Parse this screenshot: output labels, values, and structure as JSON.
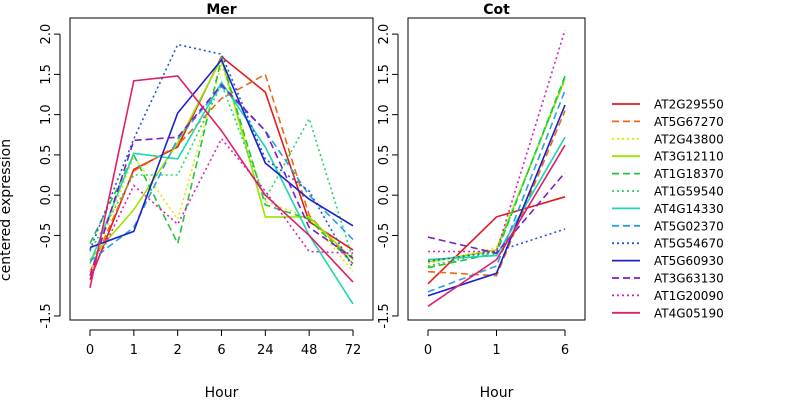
{
  "chart_data": [
    {
      "type": "line",
      "title": "Mer",
      "xlabel": "Hour",
      "ylabel": "centered expression",
      "categories": [
        "0",
        "1",
        "2",
        "6",
        "24",
        "48",
        "72"
      ],
      "ylim": [
        -1.55,
        2.2
      ],
      "yticks": [
        -1.5,
        -0.5,
        0.0,
        0.5,
        1.0,
        1.5,
        2.0
      ],
      "ytick_labels": [
        "-1.5",
        "-0.5",
        "0.0",
        "0.5",
        "1.0",
        "1.5",
        "2.0"
      ],
      "series": [
        {
          "name": "AT2G29550",
          "color": "#e41a1c",
          "dash": "solid",
          "values": [
            -1.05,
            0.32,
            0.6,
            1.72,
            1.28,
            -0.33,
            -0.68
          ]
        },
        {
          "name": "AT5G67270",
          "color": "#e66c12",
          "dash": "dashed",
          "values": [
            -0.95,
            0.3,
            0.62,
            1.2,
            1.5,
            -0.25,
            -0.85
          ]
        },
        {
          "name": "AT2G43800",
          "color": "#e6e600",
          "dash": "dotted",
          "values": [
            -0.95,
            0.48,
            -0.3,
            1.62,
            -0.08,
            -0.28,
            -0.95
          ]
        },
        {
          "name": "AT3G12110",
          "color": "#99e600",
          "dash": "solid",
          "values": [
            -0.8,
            -0.18,
            0.65,
            1.7,
            -0.27,
            -0.27,
            -0.8
          ]
        },
        {
          "name": "AT1G18370",
          "color": "#22c43a",
          "dash": "dashed",
          "values": [
            -0.6,
            0.5,
            -0.6,
            1.7,
            -0.12,
            -0.3,
            -0.85
          ]
        },
        {
          "name": "AT1G59540",
          "color": "#22d860",
          "dash": "dotted",
          "values": [
            -0.7,
            0.25,
            0.25,
            1.38,
            -0.05,
            0.95,
            -0.8
          ]
        },
        {
          "name": "AT4G14330",
          "color": "#1fd6b0",
          "dash": "solid",
          "values": [
            -0.85,
            0.52,
            0.45,
            1.4,
            0.6,
            -0.5,
            -1.35
          ]
        },
        {
          "name": "AT5G02370",
          "color": "#2aa0e0",
          "dash": "dashed",
          "values": [
            -0.82,
            -0.4,
            0.7,
            1.35,
            0.8,
            0.0,
            -0.55
          ]
        },
        {
          "name": "AT5G54670",
          "color": "#1a5ad8",
          "dash": "dotted",
          "values": [
            -0.68,
            0.7,
            1.87,
            1.75,
            0.45,
            0.05,
            -0.9
          ]
        },
        {
          "name": "AT5G60930",
          "color": "#1f1fc8",
          "dash": "solid",
          "values": [
            -0.65,
            -0.45,
            1.02,
            1.68,
            0.4,
            -0.05,
            -0.38
          ]
        },
        {
          "name": "AT3G63130",
          "color": "#7a1ec8",
          "dash": "dashed",
          "values": [
            -1.0,
            0.68,
            0.72,
            1.37,
            0.8,
            -0.4,
            -0.78
          ]
        },
        {
          "name": "AT1G20090",
          "color": "#d81ec0",
          "dash": "dotted",
          "values": [
            -1.0,
            0.12,
            -0.36,
            0.7,
            0.05,
            -0.7,
            -0.72
          ]
        },
        {
          "name": "AT4G05190",
          "color": "#e01e6a",
          "dash": "solid",
          "values": [
            -1.15,
            1.42,
            1.48,
            0.8,
            0.0,
            -0.5,
            -1.08
          ]
        }
      ]
    },
    {
      "type": "line",
      "title": "Cot",
      "xlabel": "Hour",
      "ylabel": "",
      "categories": [
        "0",
        "1",
        "6"
      ],
      "ylim": [
        -1.55,
        2.2
      ],
      "yticks": [
        -1.5,
        -0.5,
        0.0,
        0.5,
        1.0,
        1.5,
        2.0
      ],
      "ytick_labels": [
        "-1.5",
        "-0.5",
        "0.0",
        "0.5",
        "1.0",
        "1.5",
        "2.0"
      ],
      "series": [
        {
          "name": "AT2G29550",
          "color": "#e41a1c",
          "dash": "solid",
          "values": [
            -1.1,
            -0.27,
            -0.02
          ]
        },
        {
          "name": "AT5G67270",
          "color": "#e66c12",
          "dash": "dashed",
          "values": [
            -0.95,
            -1.0,
            1.05
          ]
        },
        {
          "name": "AT2G43800",
          "color": "#e6e600",
          "dash": "dotted",
          "values": [
            -0.85,
            -0.65,
            1.42
          ]
        },
        {
          "name": "AT3G12110",
          "color": "#99e600",
          "dash": "solid",
          "values": [
            -0.83,
            -0.68,
            1.45
          ]
        },
        {
          "name": "AT1G18370",
          "color": "#22c43a",
          "dash": "dashed",
          "values": [
            -0.9,
            -0.72,
            1.48
          ]
        },
        {
          "name": "AT1G59540",
          "color": "#22d860",
          "dash": "dotted",
          "values": [
            -0.88,
            -0.7,
            1.45
          ]
        },
        {
          "name": "AT4G14330",
          "color": "#1fd6b0",
          "dash": "solid",
          "values": [
            -0.8,
            -0.75,
            0.72
          ]
        },
        {
          "name": "AT5G02370",
          "color": "#2aa0e0",
          "dash": "dashed",
          "values": [
            -1.2,
            -0.88,
            1.3
          ]
        },
        {
          "name": "AT5G54670",
          "color": "#1a5ad8",
          "dash": "dotted",
          "values": [
            -0.82,
            -0.7,
            -0.42
          ]
        },
        {
          "name": "AT5G60930",
          "color": "#1f1fc8",
          "dash": "solid",
          "values": [
            -1.25,
            -0.97,
            1.12
          ]
        },
        {
          "name": "AT3G63130",
          "color": "#7a1ec8",
          "dash": "dashed",
          "values": [
            -0.52,
            -0.72,
            0.28
          ]
        },
        {
          "name": "AT1G20090",
          "color": "#d81ec0",
          "dash": "dotted",
          "values": [
            -0.7,
            -0.7,
            2.05
          ]
        },
        {
          "name": "AT4G05190",
          "color": "#e01e6a",
          "dash": "solid",
          "values": [
            -1.38,
            -0.8,
            0.62
          ]
        }
      ]
    }
  ],
  "legend": {
    "placement": "right",
    "entries": [
      {
        "name": "AT2G29550",
        "color": "#e41a1c",
        "dash": "solid"
      },
      {
        "name": "AT5G67270",
        "color": "#e66c12",
        "dash": "dashed"
      },
      {
        "name": "AT2G43800",
        "color": "#e6e600",
        "dash": "dotted"
      },
      {
        "name": "AT3G12110",
        "color": "#99e600",
        "dash": "solid"
      },
      {
        "name": "AT1G18370",
        "color": "#22c43a",
        "dash": "dashed"
      },
      {
        "name": "AT1G59540",
        "color": "#22d860",
        "dash": "dotted"
      },
      {
        "name": "AT4G14330",
        "color": "#1fd6b0",
        "dash": "solid"
      },
      {
        "name": "AT5G02370",
        "color": "#2aa0e0",
        "dash": "dashed"
      },
      {
        "name": "AT5G54670",
        "color": "#1a5ad8",
        "dash": "dotted"
      },
      {
        "name": "AT5G60930",
        "color": "#1f1fc8",
        "dash": "solid"
      },
      {
        "name": "AT3G63130",
        "color": "#7a1ec8",
        "dash": "dashed"
      },
      {
        "name": "AT1G20090",
        "color": "#d81ec0",
        "dash": "dotted"
      },
      {
        "name": "AT4G05190",
        "color": "#e01e6a",
        "dash": "solid"
      }
    ]
  }
}
